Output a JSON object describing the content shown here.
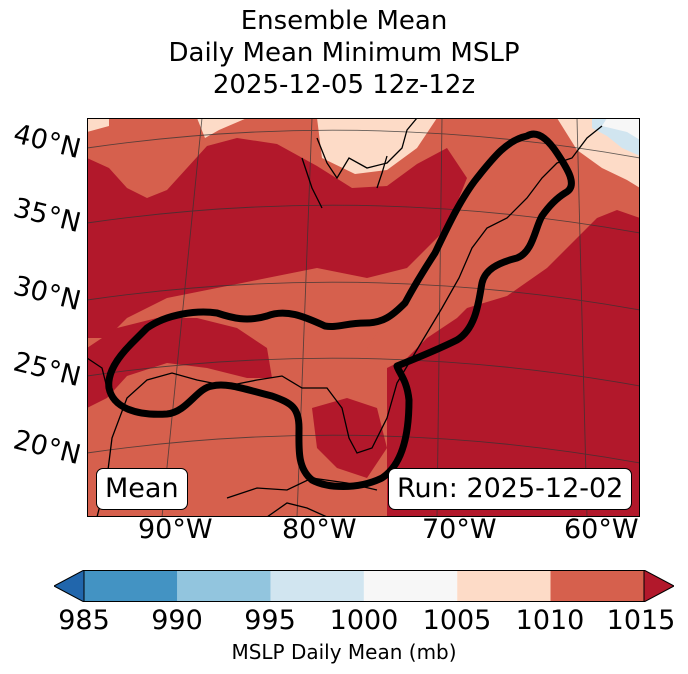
{
  "title": {
    "line1": "Ensemble Mean",
    "line2": "Daily Mean Minimum MSLP",
    "line3": "2025-12-05 12z-12z"
  },
  "map": {
    "lat_labels": [
      "40°N",
      "35°N",
      "30°N",
      "25°N",
      "20°N"
    ],
    "lon_labels": [
      "90°W",
      "80°W",
      "70°W",
      "60°W"
    ],
    "mean_label": "Mean",
    "run_label": "Run: 2025-12-02",
    "contour_color": "#000000"
  },
  "colorbar": {
    "label": "MSLP Daily Mean (mb)",
    "ticks": [
      "985",
      "990",
      "995",
      "1000",
      "1005",
      "1010",
      "1015"
    ],
    "colors": {
      "below": "#2166ac",
      "985-990": "#4393c3",
      "990-995": "#92c5de",
      "995-1000": "#d1e5f0",
      "1000-1005": "#f7f7f7",
      "1005-1010": "#fddbc7",
      "1010-1015": "#d6604d",
      "above": "#b2182b"
    }
  }
}
